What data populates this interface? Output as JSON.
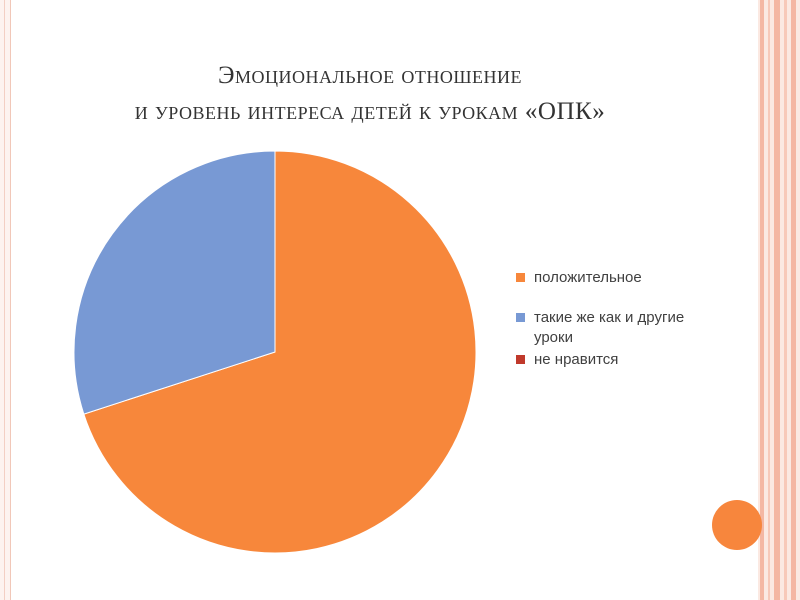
{
  "title": {
    "line1": "Эмоциональное отношение",
    "line2": "и уровень интереса детей к урокам «ОПК»"
  },
  "colors": {
    "accent": "#f7863d",
    "frame": "#f4b7a3"
  },
  "chart_data": {
    "type": "pie",
    "title": "Эмоциональное отношение и уровень интереса детей к урокам «ОПК»",
    "legend_position": "right",
    "slices": [
      {
        "label": "положительное",
        "value": 70,
        "color": "#f7873b"
      },
      {
        "label": "такие же как и другие уроки",
        "value": 30,
        "color": "#7899d4"
      },
      {
        "label": "не нравится",
        "value": 0,
        "color": "#c0392b"
      }
    ]
  }
}
